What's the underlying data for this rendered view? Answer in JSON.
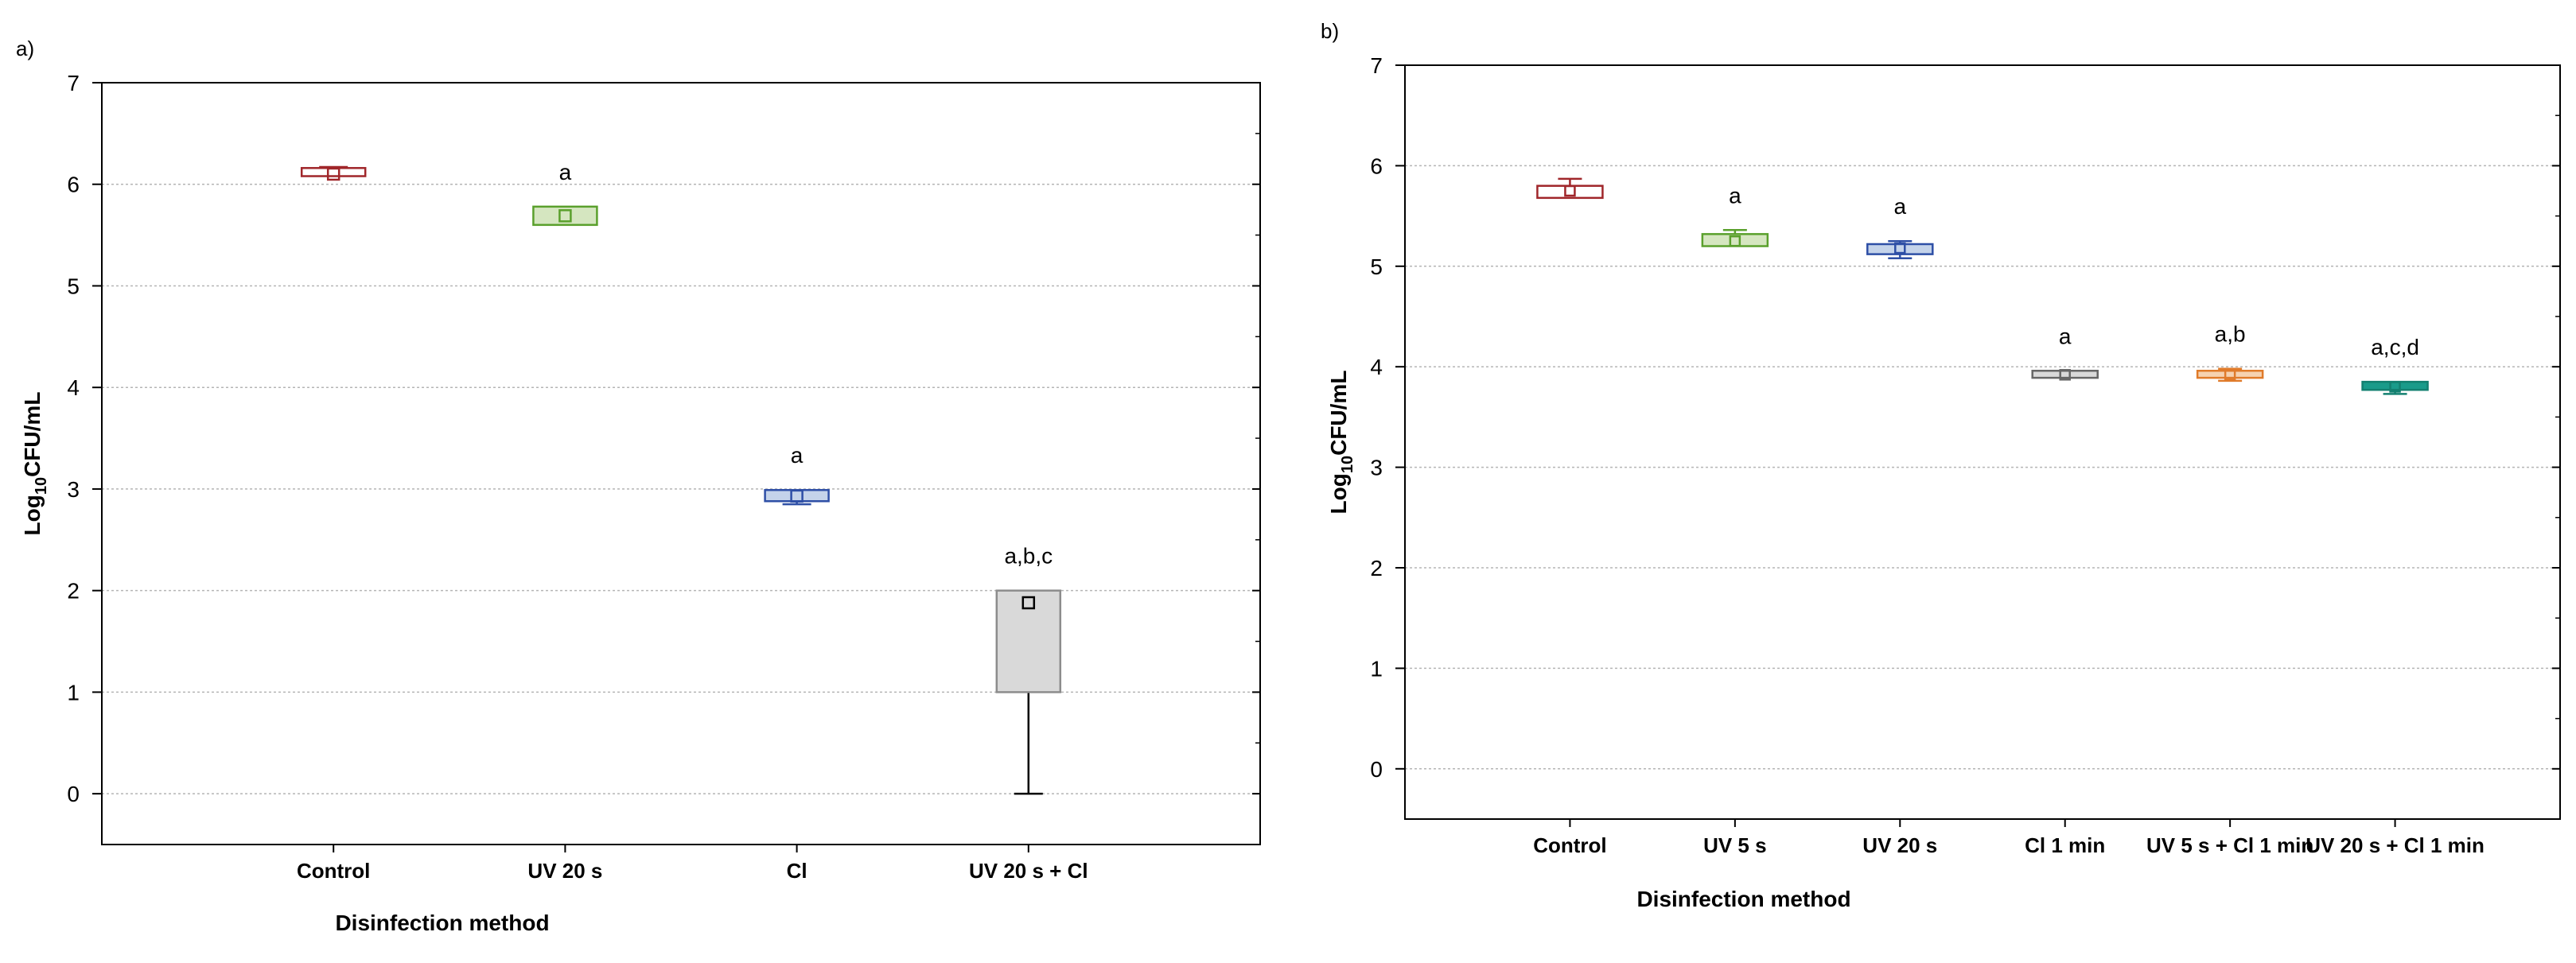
{
  "chart_data": [
    {
      "type": "box",
      "panel_label": "a)",
      "title": "",
      "xlabel": "Disinfection method",
      "ylabel": "Log10CFU/mL",
      "ylabel_parts": {
        "base": "Log",
        "sub": "10",
        "rest": "CFU/mL"
      },
      "ylim": [
        -0.5,
        7
      ],
      "yticks": [
        0,
        1,
        2,
        3,
        4,
        5,
        6,
        7
      ],
      "grid": true,
      "categories": [
        "Control",
        "UV 20 s",
        "Cl",
        "UV 20 s + Cl"
      ],
      "boxes": [
        {
          "category": "Control",
          "median": 6.1,
          "q1": 6.08,
          "q3": 6.16,
          "min": 6.08,
          "max": 6.17,
          "significance": "",
          "color": "#a0262a",
          "fill": "#ffffff"
        },
        {
          "category": "UV 20 s",
          "median": 5.69,
          "q1": 5.6,
          "q3": 5.78,
          "min": 5.6,
          "max": 5.78,
          "significance": "a",
          "color": "#5aa02c",
          "fill": "#d5e6c0"
        },
        {
          "category": "Cl",
          "median": 2.93,
          "q1": 2.88,
          "q3": 2.99,
          "min": 2.85,
          "max": 2.99,
          "significance": "a",
          "color": "#2e4fa6",
          "fill": "#c4d3ea"
        },
        {
          "category": "UV 20 s + Cl",
          "median": 1.88,
          "q1": 1.0,
          "q3": 2.0,
          "min": 0.0,
          "max": 2.0,
          "significance": "a,b,c",
          "color": "#000000",
          "fill": "#d9d9d9"
        }
      ]
    },
    {
      "type": "box",
      "panel_label": "b)",
      "title": "",
      "xlabel": "Disinfection method",
      "ylabel": "Log10CFU/mL",
      "ylabel_parts": {
        "base": "Log",
        "sub": "10",
        "rest": "CFU/mL"
      },
      "ylim": [
        -0.5,
        7
      ],
      "yticks": [
        0,
        1,
        2,
        3,
        4,
        5,
        6,
        7
      ],
      "grid": true,
      "categories": [
        "Control",
        "UV 5 s",
        "UV 20 s",
        "Cl 1 min",
        "UV 5 s + Cl 1 min",
        "UV 20 s + Cl 1 min"
      ],
      "boxes": [
        {
          "category": "Control",
          "median": 5.75,
          "q1": 5.68,
          "q3": 5.8,
          "min": 5.68,
          "max": 5.87,
          "significance": "",
          "color": "#a0262a",
          "fill": "#ffffff"
        },
        {
          "category": "UV 5 s",
          "median": 5.25,
          "q1": 5.2,
          "q3": 5.32,
          "min": 5.2,
          "max": 5.36,
          "significance": "a",
          "color": "#5aa02c",
          "fill": "#d5e6c0"
        },
        {
          "category": "UV 20 s",
          "median": 5.18,
          "q1": 5.12,
          "q3": 5.22,
          "min": 5.08,
          "max": 5.25,
          "significance": "a",
          "color": "#2e4fa6",
          "fill": "#c4d3ea"
        },
        {
          "category": "Cl 1 min",
          "median": 3.92,
          "q1": 3.89,
          "q3": 3.96,
          "min": 3.89,
          "max": 3.96,
          "significance": "a",
          "color": "#666666",
          "fill": "#d9d9d9"
        },
        {
          "category": "UV 5 s + Cl 1 min",
          "median": 3.92,
          "q1": 3.89,
          "q3": 3.96,
          "min": 3.86,
          "max": 3.98,
          "significance": "a,b",
          "color": "#e07b2a",
          "fill": "#f6d2b0"
        },
        {
          "category": "UV 20 s + Cl 1 min",
          "median": 3.8,
          "q1": 3.77,
          "q3": 3.85,
          "min": 3.73,
          "max": 3.85,
          "significance": "a,c,d",
          "color": "#138070",
          "fill": "#1a9b8a"
        }
      ]
    }
  ]
}
